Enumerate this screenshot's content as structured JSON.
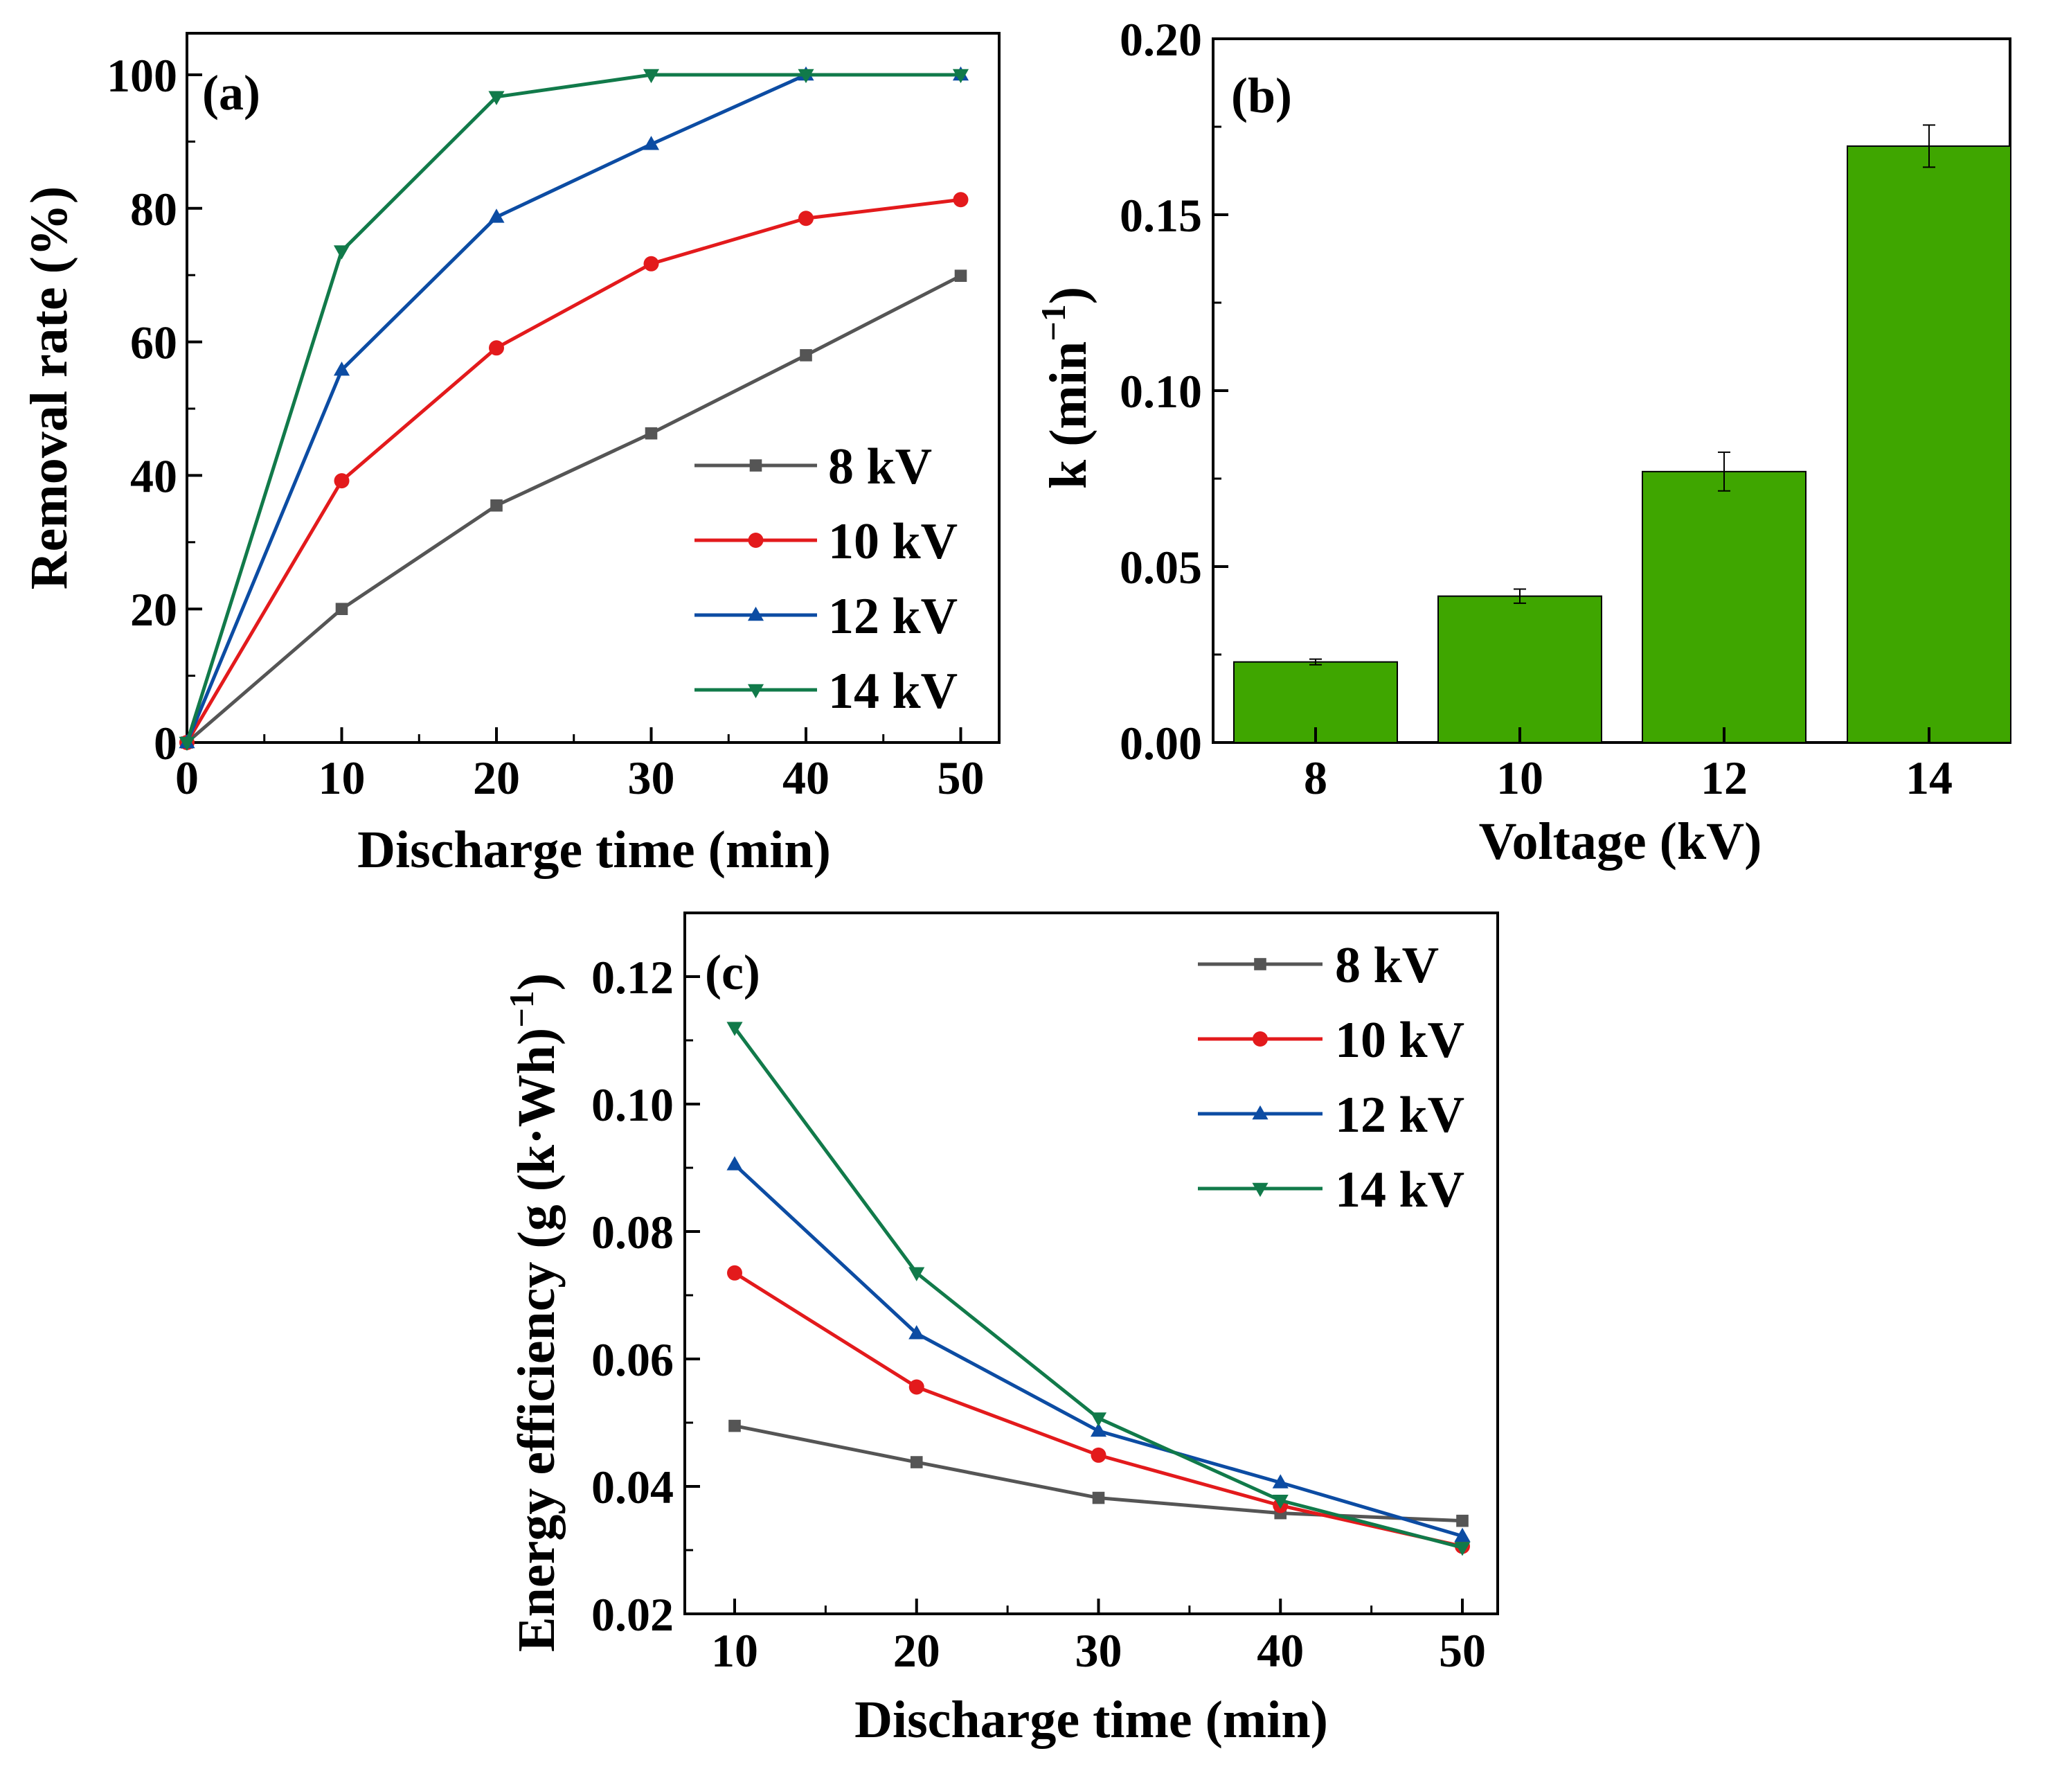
{
  "chart_data": [
    {
      "panel": "(a)",
      "type": "line",
      "xlabel": "Discharge time (min)",
      "ylabel": "Removal rate (%)",
      "xlim": [
        0,
        52
      ],
      "ylim": [
        0,
        100
      ],
      "xticks": [
        0,
        10,
        20,
        30,
        40,
        50
      ],
      "yticks": [
        0,
        20,
        40,
        60,
        80,
        100
      ],
      "x": [
        0,
        10,
        20,
        30,
        40,
        50
      ],
      "legend_position": "bottom-right",
      "series": [
        {
          "name": "8 kV",
          "color": "#555555",
          "marker": "square",
          "values": [
            0,
            20.0,
            35.5,
            46.3,
            58.0,
            69.9
          ]
        },
        {
          "name": "10 kV",
          "color": "#e31a1c",
          "marker": "circle",
          "values": [
            0,
            39.2,
            59.1,
            71.7,
            78.5,
            81.3
          ]
        },
        {
          "name": "12 kV",
          "color": "#0c4ca3",
          "marker": "triangle-up",
          "values": [
            0,
            55.8,
            78.7,
            89.6,
            100.0,
            100.0
          ]
        },
        {
          "name": "14 kV",
          "color": "#117a4a",
          "marker": "triangle-down",
          "values": [
            0,
            73.6,
            96.7,
            100.0,
            100.0,
            100.0
          ]
        }
      ]
    },
    {
      "panel": "(b)",
      "type": "bar",
      "xlabel": "Voltage (kV)",
      "ylabel_main": "k (min",
      "ylabel_sup": "−1",
      "ylabel_end": ")",
      "categories": [
        "8",
        "10",
        "12",
        "14"
      ],
      "values": [
        0.0229,
        0.0416,
        0.077,
        0.1695
      ],
      "errors": [
        0.0008,
        0.002,
        0.0055,
        0.006
      ],
      "ylim": [
        0,
        0.2
      ],
      "yticks": [
        "0.00",
        "0.05",
        "0.10",
        "0.15",
        "0.20"
      ],
      "bar_color": "#3fa600"
    },
    {
      "panel": "(c)",
      "type": "line",
      "xlabel": "Discharge time (min)",
      "ylabel_main": "Energy efficiency (g (k·Wh)",
      "ylabel_sup": "−1",
      "ylabel_end": ")",
      "xlim": [
        7,
        52
      ],
      "ylim": [
        0.02,
        0.13
      ],
      "xticks": [
        10,
        20,
        30,
        40,
        50
      ],
      "yticks": [
        "0.02",
        "0.04",
        "0.06",
        "0.08",
        "0.10",
        "0.12"
      ],
      "x": [
        10,
        20,
        30,
        40,
        50
      ],
      "legend_position": "top-right",
      "series": [
        {
          "name": "8 kV",
          "color": "#555555",
          "marker": "square",
          "values": [
            0.0495,
            0.0438,
            0.0382,
            0.0358,
            0.0346
          ]
        },
        {
          "name": "10 kV",
          "color": "#e31a1c",
          "marker": "circle",
          "values": [
            0.0735,
            0.0556,
            0.0449,
            0.037,
            0.0306
          ]
        },
        {
          "name": "12 kV",
          "color": "#0c4ca3",
          "marker": "triangle-up",
          "values": [
            0.0905,
            0.064,
            0.0487,
            0.0406,
            0.0322
          ]
        },
        {
          "name": "14 kV",
          "color": "#117a4a",
          "marker": "triangle-down",
          "values": [
            0.112,
            0.0735,
            0.0507,
            0.0378,
            0.0304
          ]
        }
      ]
    }
  ]
}
